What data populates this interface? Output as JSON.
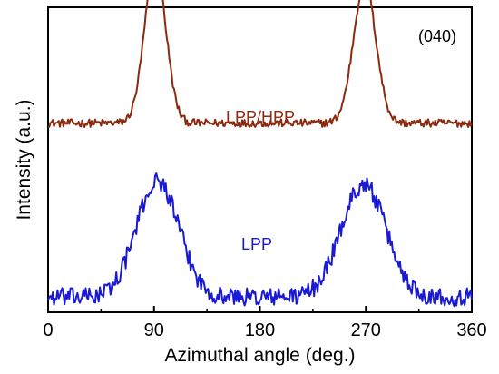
{
  "chart_data": {
    "type": "line",
    "title": "",
    "xlabel": "Azimuthal angle (deg.)",
    "ylabel": "Intensity (a.u.)",
    "xlim": [
      0,
      360
    ],
    "x_ticks": [
      "0",
      "90",
      "180",
      "270",
      "360"
    ],
    "y_ticks": [],
    "grid": false,
    "legend": "none",
    "annotations": [
      "(040)"
    ],
    "series": [
      {
        "name": "LPP/HPP",
        "color": "#8B2A0E",
        "baseline": 0.62,
        "noise": 0.013,
        "peaks": [
          {
            "center": 91,
            "height": 0.52,
            "width": 9
          },
          {
            "center": 269,
            "height": 0.46,
            "width": 9.5
          }
        ]
      },
      {
        "name": "LPP",
        "color": "#1a1ad4",
        "baseline": 0.05,
        "noise": 0.03,
        "peaks": [
          {
            "center": 93,
            "height": 0.38,
            "width": 18
          },
          {
            "center": 268,
            "height": 0.37,
            "width": 19
          }
        ]
      }
    ]
  }
}
